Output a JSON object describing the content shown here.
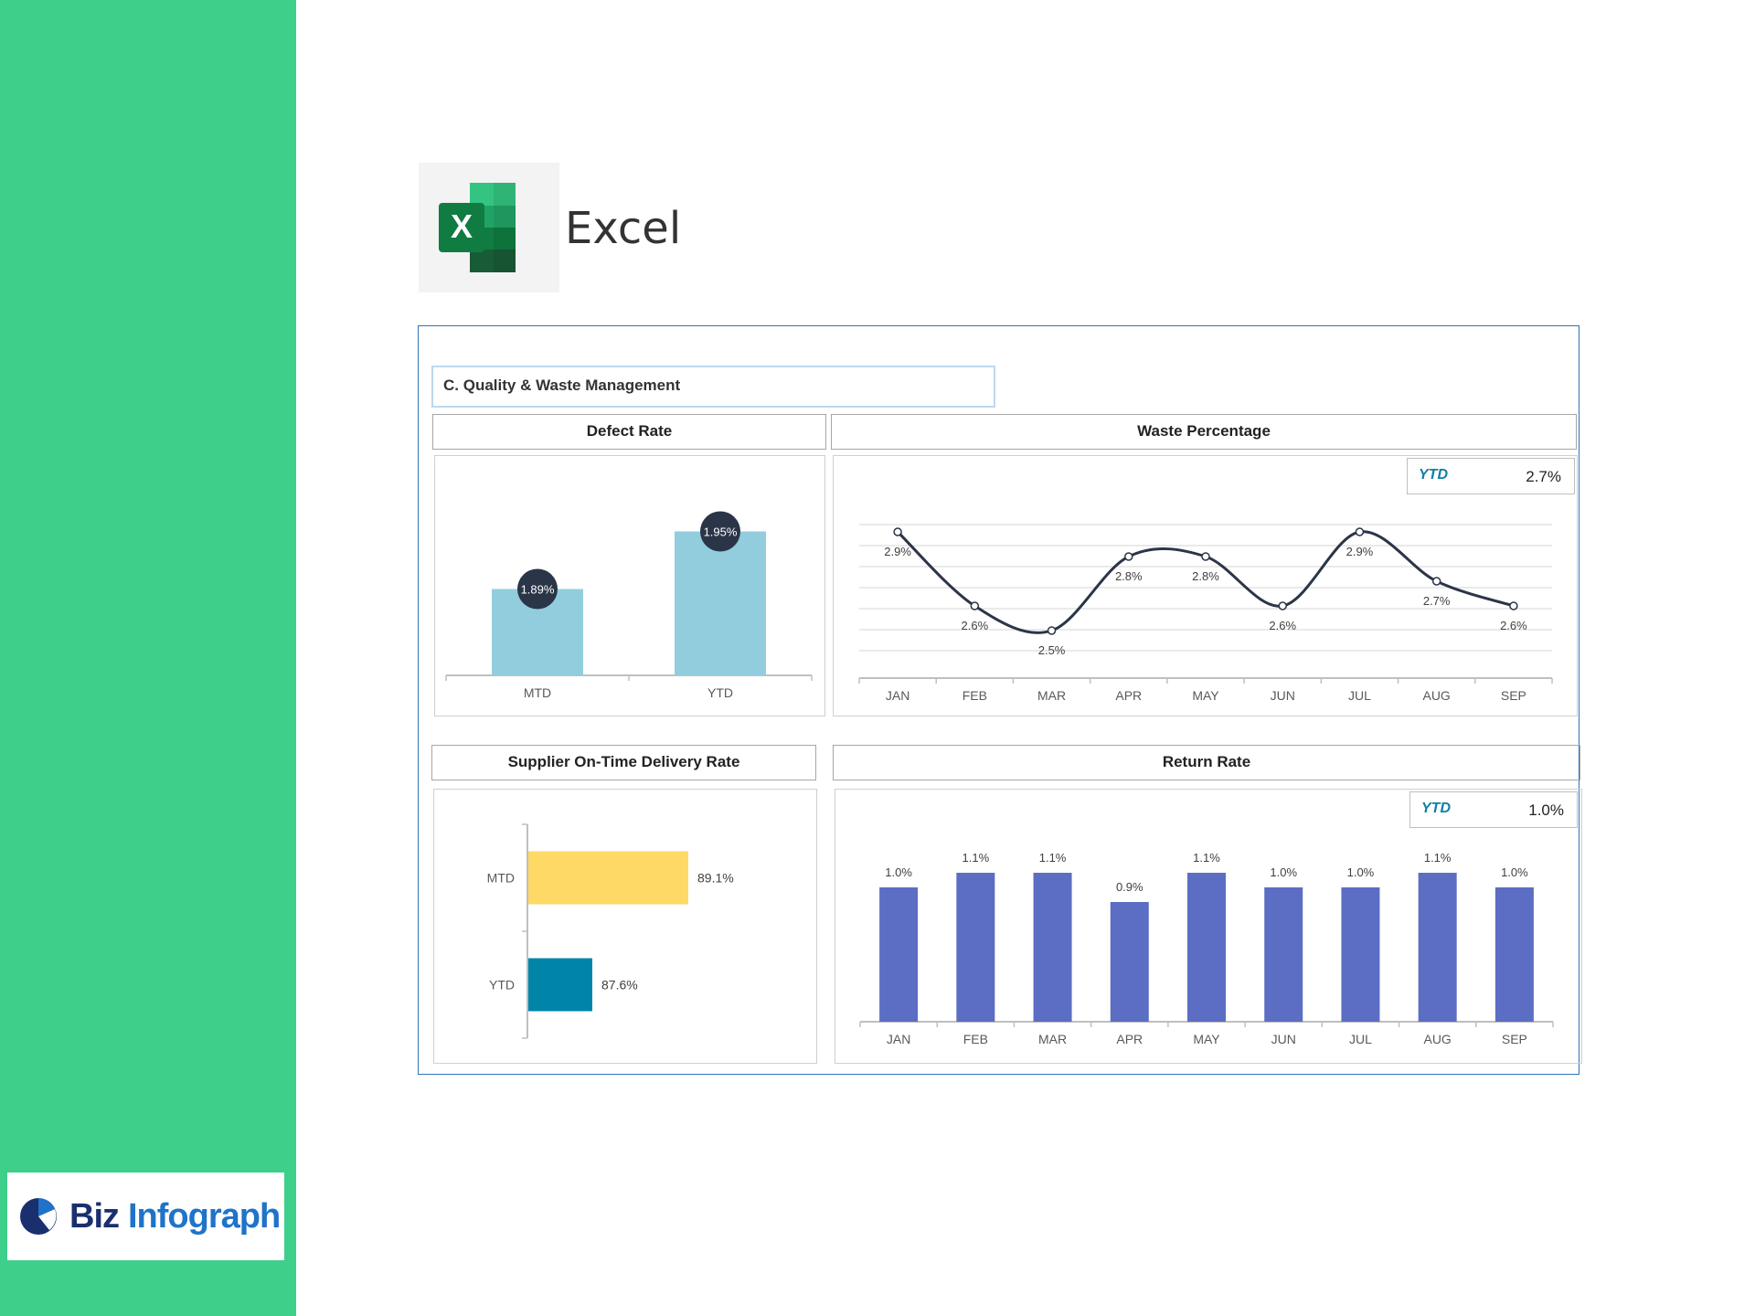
{
  "app": {
    "label": "Excel"
  },
  "brand": {
    "part1": "Biz",
    "part2": "Infograph"
  },
  "dashboard": {
    "section_title": "C. Quality & Waste Management",
    "defect": {
      "title": "Defect Rate"
    },
    "waste": {
      "title": "Waste Percentage",
      "ytd_label": "YTD",
      "ytd_value": "2.7%"
    },
    "supplier": {
      "title": "Supplier On-Time Delivery Rate"
    },
    "return": {
      "title": "Return Rate",
      "ytd_label": "YTD",
      "ytd_value": "1.0%"
    }
  },
  "colors": {
    "sidebar": "#3ecf8a",
    "defect_bar": "#92cddd",
    "bubble": "#2b3548",
    "line": "#2b3548",
    "mtd_bar": "#ffd966",
    "ytd_bar": "#0085a8",
    "return_bar": "#5b6ec4"
  },
  "chart_data": [
    {
      "type": "bar",
      "title": "Defect Rate",
      "categories": [
        "MTD",
        "YTD"
      ],
      "values": [
        1.89,
        1.95
      ],
      "labels": [
        "1.89%",
        "1.95%"
      ]
    },
    {
      "type": "line",
      "title": "Waste Percentage",
      "categories": [
        "JAN",
        "FEB",
        "MAR",
        "APR",
        "MAY",
        "JUN",
        "JUL",
        "AUG",
        "SEP"
      ],
      "values": [
        2.9,
        2.6,
        2.5,
        2.8,
        2.8,
        2.6,
        2.9,
        2.7,
        2.6
      ],
      "labels": [
        "2.9%",
        "2.6%",
        "2.5%",
        "2.8%",
        "2.8%",
        "2.6%",
        "2.9%",
        "2.7%",
        "2.6%"
      ],
      "grid": true
    },
    {
      "type": "bar",
      "orientation": "horizontal",
      "title": "Supplier On-Time Delivery Rate",
      "categories": [
        "MTD",
        "YTD"
      ],
      "values": [
        89.1,
        87.6
      ],
      "labels": [
        "89.1%",
        "87.6%"
      ]
    },
    {
      "type": "bar",
      "title": "Return Rate",
      "categories": [
        "JAN",
        "FEB",
        "MAR",
        "APR",
        "MAY",
        "JUN",
        "JUL",
        "AUG",
        "SEP"
      ],
      "values": [
        1.0,
        1.1,
        1.1,
        0.9,
        1.1,
        1.0,
        1.0,
        1.1,
        1.0
      ],
      "labels": [
        "1.0%",
        "1.1%",
        "1.1%",
        "0.9%",
        "1.1%",
        "1.0%",
        "1.0%",
        "1.1%",
        "1.0%"
      ]
    }
  ]
}
